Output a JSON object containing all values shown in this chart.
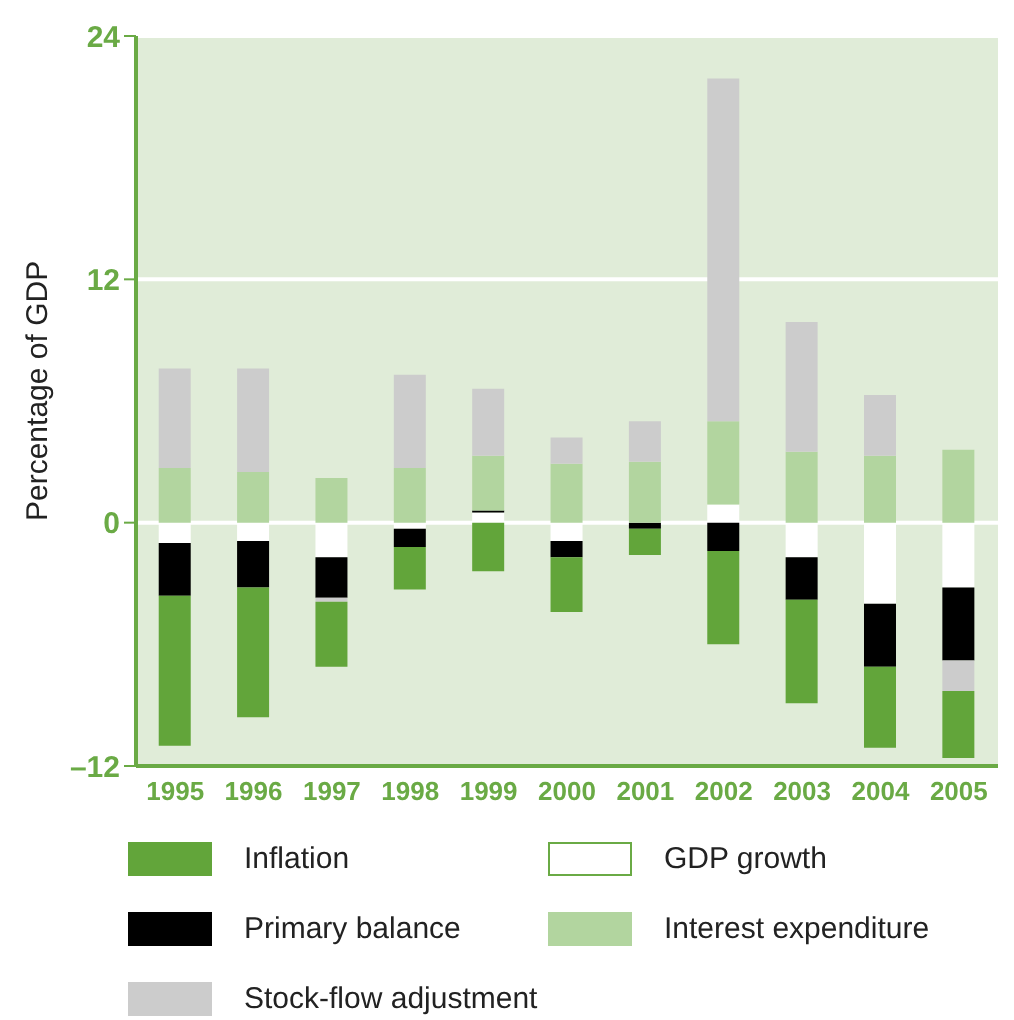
{
  "chart_data": {
    "type": "bar",
    "stacked": true,
    "ylabel": "Percentage of GDP",
    "categories": [
      "1995",
      "1996",
      "1997",
      "1998",
      "1999",
      "2000",
      "2001",
      "2002",
      "2003",
      "2004",
      "2005"
    ],
    "series": [
      {
        "name": "GDP growth",
        "color": "#ffffff",
        "values": [
          -1.0,
          -0.9,
          -1.7,
          -0.3,
          0.5,
          -0.9,
          0,
          0.9,
          -1.7,
          -4.0,
          -3.2
        ]
      },
      {
        "name": "Primary balance",
        "color": "#000000",
        "values": [
          -2.6,
          -2.3,
          -2.0,
          -0.9,
          0.1,
          -0.8,
          -0.3,
          -1.4,
          -2.1,
          -3.1,
          -3.6
        ]
      },
      {
        "name": "Interest expenditure",
        "color": "#b2d59f",
        "values": [
          2.7,
          2.5,
          2.2,
          2.7,
          2.7,
          2.9,
          3.0,
          4.1,
          3.5,
          3.3,
          3.6
        ]
      },
      {
        "name": "Stock-flow adjustment",
        "color": "#cccccc",
        "values": [
          4.9,
          5.1,
          -0.2,
          4.6,
          3.3,
          1.3,
          2.0,
          16.9,
          6.4,
          3.0,
          -1.5
        ]
      },
      {
        "name": "Inflation",
        "color": "#62a53a",
        "values": [
          -7.4,
          -6.4,
          -3.2,
          -2.1,
          -2.4,
          -2.7,
          -1.3,
          -4.6,
          -5.1,
          -4.0,
          -3.3
        ]
      }
    ],
    "ylim": [
      -12,
      24
    ],
    "yticks": [
      {
        "value": -12,
        "label": "–12"
      },
      0,
      12,
      24
    ],
    "grid": "y",
    "legend": "bottom"
  }
}
